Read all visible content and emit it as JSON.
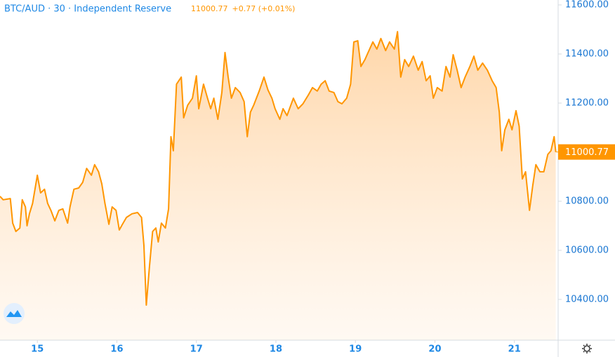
{
  "chart_data": {
    "type": "area",
    "title": "BTC/AUD · 30 · Independent Reserve",
    "last_price_label": "11000.77",
    "change_label": "+0.77 (+0.01%)",
    "x": [
      14.53,
      14.57,
      14.66,
      14.69,
      14.73,
      14.78,
      14.81,
      14.85,
      14.87,
      14.9,
      14.94,
      15.0,
      15.04,
      15.09,
      15.13,
      15.17,
      15.22,
      15.27,
      15.32,
      15.38,
      15.41,
      15.46,
      15.52,
      15.57,
      15.62,
      15.68,
      15.72,
      15.77,
      15.81,
      15.85,
      15.9,
      15.94,
      15.99,
      16.03,
      16.07,
      16.12,
      16.19,
      16.26,
      16.31,
      16.34,
      16.37,
      16.41,
      16.45,
      16.49,
      16.52,
      16.56,
      16.61,
      16.65,
      16.68,
      16.71,
      16.75,
      16.81,
      16.84,
      16.89,
      16.95,
      17.0,
      17.03,
      17.09,
      17.14,
      17.18,
      17.22,
      17.27,
      17.32,
      17.36,
      17.4,
      17.44,
      17.49,
      17.55,
      17.6,
      17.64,
      17.68,
      17.72,
      17.79,
      17.85,
      17.9,
      17.95,
      17.99,
      18.05,
      18.09,
      18.14,
      18.22,
      18.28,
      18.34,
      18.41,
      18.46,
      18.52,
      18.57,
      18.62,
      18.67,
      18.73,
      18.78,
      18.83,
      18.89,
      18.94,
      18.98,
      19.03,
      19.07,
      19.12,
      19.16,
      19.22,
      19.27,
      19.32,
      19.38,
      19.43,
      19.49,
      19.53,
      19.57,
      19.62,
      19.67,
      19.73,
      19.79,
      19.84,
      19.89,
      19.94,
      19.98,
      20.03,
      20.09,
      20.14,
      20.19,
      20.23,
      20.28,
      20.33,
      20.38,
      20.44,
      20.49,
      20.54,
      20.6,
      20.66,
      20.72,
      20.77,
      20.81,
      20.84,
      20.88,
      20.93,
      20.97,
      21.02,
      21.06,
      21.1,
      21.14,
      21.19,
      21.23,
      21.27,
      21.32,
      21.37,
      21.42,
      21.46,
      21.5,
      21.52
    ],
    "series": [
      {
        "color": "#ff9600",
        "values": [
          10820,
          10806,
          10811,
          10711,
          10677,
          10691,
          10806,
          10777,
          10700,
          10749,
          10791,
          10906,
          10834,
          10849,
          10791,
          10763,
          10720,
          10763,
          10769,
          10711,
          10777,
          10849,
          10854,
          10877,
          10934,
          10906,
          10949,
          10920,
          10871,
          10791,
          10706,
          10777,
          10763,
          10683,
          10706,
          10734,
          10749,
          10754,
          10734,
          10620,
          10377,
          10534,
          10677,
          10691,
          10634,
          10711,
          10691,
          10769,
          11063,
          11006,
          11277,
          11306,
          11140,
          11191,
          11220,
          11311,
          11177,
          11277,
          11220,
          11177,
          11220,
          11134,
          11243,
          11406,
          11306,
          11220,
          11263,
          11243,
          11206,
          11063,
          11163,
          11191,
          11249,
          11306,
          11254,
          11220,
          11177,
          11134,
          11177,
          11149,
          11220,
          11177,
          11197,
          11234,
          11263,
          11249,
          11277,
          11291,
          11249,
          11243,
          11206,
          11197,
          11220,
          11277,
          11449,
          11454,
          11349,
          11377,
          11406,
          11449,
          11420,
          11463,
          11414,
          11449,
          11420,
          11491,
          11306,
          11377,
          11349,
          11391,
          11334,
          11369,
          11291,
          11311,
          11220,
          11263,
          11249,
          11349,
          11306,
          11397,
          11334,
          11263,
          11306,
          11349,
          11391,
          11334,
          11363,
          11334,
          11291,
          11263,
          11163,
          11006,
          11091,
          11134,
          11091,
          11169,
          11106,
          10891,
          10920,
          10763,
          10863,
          10949,
          10920,
          10920,
          10991,
          11006,
          11063,
          11000.77
        ]
      }
    ],
    "xlim": [
      14.53,
      21.55
    ],
    "xticks": [
      15,
      16,
      17,
      18,
      19,
      20,
      21
    ],
    "ylim": [
      10234,
      11620
    ],
    "yticks": [
      {
        "value": 10400,
        "label": "10400.00"
      },
      {
        "value": 10600,
        "label": "10600.00"
      },
      {
        "value": 10800,
        "label": "10800.00"
      },
      {
        "value": 11200,
        "label": "11200.00"
      },
      {
        "value": 11400,
        "label": "11400.00"
      },
      {
        "value": 11600,
        "label": "11600.00"
      }
    ]
  }
}
